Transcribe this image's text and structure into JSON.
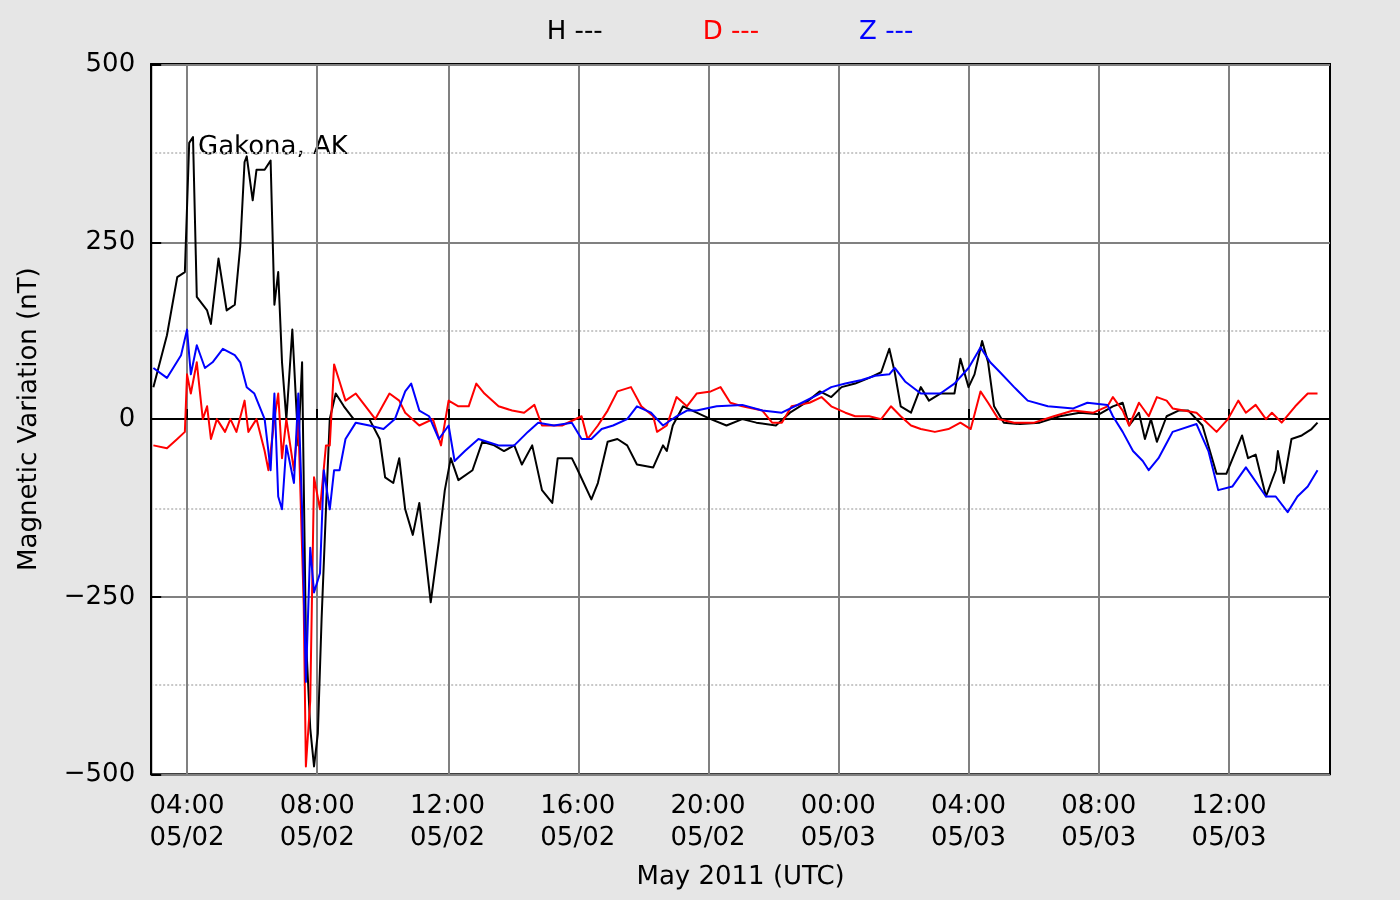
{
  "chart_data": {
    "type": "line",
    "xlabel": "May 2011 (UTC)",
    "ylabel": "Magnetic Variation (nT)",
    "annotations": [
      "Gakona, AK"
    ],
    "legend": "top",
    "grid": true,
    "xlim": [
      "2011-05-02T02:54",
      "2011-05-03T15:06"
    ],
    "xticks": [
      {
        "value": "2011-05-02T04:00",
        "label": "04:00\n05/02"
      },
      {
        "value": "2011-05-02T08:00",
        "label": "08:00\n05/02"
      },
      {
        "value": "2011-05-02T12:00",
        "label": "12:00\n05/02"
      },
      {
        "value": "2011-05-02T16:00",
        "label": "16:00\n05/02"
      },
      {
        "value": "2011-05-02T20:00",
        "label": "20:00\n05/02"
      },
      {
        "value": "2011-05-03T00:00",
        "label": "00:00\n05/03"
      },
      {
        "value": "2011-05-03T04:00",
        "label": "04:00\n05/03"
      },
      {
        "value": "2011-05-03T08:00",
        "label": "08:00\n05/03"
      },
      {
        "value": "2011-05-03T12:00",
        "label": "12:00\n05/03"
      }
    ],
    "ylim": [
      -500,
      500
    ],
    "yticks": [
      {
        "value": -500,
        "label": "−500"
      },
      {
        "value": -250,
        "label": "−250"
      },
      0,
      250,
      500
    ],
    "series": [
      {
        "name": "H ---",
        "color": "#000000",
        "x": [
          "2011-05-02T02:58",
          "2011-05-02T03:23",
          "2011-05-02T03:42",
          "2011-05-02T03:56",
          "2011-05-02T04:04",
          "2011-05-02T04:11",
          "2011-05-02T04:18",
          "2011-05-02T04:37",
          "2011-05-02T04:44",
          "2011-05-02T04:58",
          "2011-05-02T05:13",
          "2011-05-02T05:28",
          "2011-05-02T05:38",
          "2011-05-02T05:46",
          "2011-05-02T05:50",
          "2011-05-02T06:01",
          "2011-05-02T06:08",
          "2011-05-02T06:23",
          "2011-05-02T06:34",
          "2011-05-02T06:41",
          "2011-05-02T06:48",
          "2011-05-02T06:55",
          "2011-05-02T07:03",
          "2011-05-02T07:07",
          "2011-05-02T07:14",
          "2011-05-02T07:25",
          "2011-05-02T07:32",
          "2011-05-02T07:39",
          "2011-05-02T07:47",
          "2011-05-02T07:54",
          "2011-05-02T08:01",
          "2011-05-02T08:08",
          "2011-05-02T08:16",
          "2011-05-02T08:23",
          "2011-05-02T08:34",
          "2011-05-02T08:49",
          "2011-05-02T09:07",
          "2011-05-02T09:36",
          "2011-05-02T09:55",
          "2011-05-02T10:05",
          "2011-05-02T10:20",
          "2011-05-02T10:31",
          "2011-05-02T10:42",
          "2011-05-02T10:56",
          "2011-05-02T11:08",
          "2011-05-02T11:19",
          "2011-05-02T11:29",
          "2011-05-02T11:44",
          "2011-05-02T11:55",
          "2011-05-02T12:06",
          "2011-05-02T12:20",
          "2011-05-02T12:46",
          "2011-05-02T13:04",
          "2011-05-02T13:26",
          "2011-05-02T13:44",
          "2011-05-02T14:03",
          "2011-05-02T14:17",
          "2011-05-02T14:36",
          "2011-05-02T14:54",
          "2011-05-02T15:13",
          "2011-05-02T15:23",
          "2011-05-02T15:49",
          "2011-05-02T16:00",
          "2011-05-02T16:25",
          "2011-05-02T16:37",
          "2011-05-02T16:55",
          "2011-05-02T17:13",
          "2011-05-02T17:31",
          "2011-05-02T17:49",
          "2011-05-02T18:19",
          "2011-05-02T18:37",
          "2011-05-02T18:44",
          "2011-05-02T18:55",
          "2011-05-02T19:14",
          "2011-05-02T19:39",
          "2011-05-02T20:05",
          "2011-05-02T20:34",
          "2011-05-02T21:03",
          "2011-05-02T21:29",
          "2011-05-02T22:05",
          "2011-05-02T22:31",
          "2011-05-02T23:00",
          "2011-05-02T23:26",
          "2011-05-02T23:47",
          "2011-05-03T00:06",
          "2011-05-03T00:31",
          "2011-05-03T00:57",
          "2011-05-03T01:19",
          "2011-05-03T01:34",
          "2011-05-03T01:44",
          "2011-05-03T01:55",
          "2011-05-03T02:14",
          "2011-05-03T02:32",
          "2011-05-03T02:47",
          "2011-05-03T03:08",
          "2011-05-03T03:34",
          "2011-05-03T03:45",
          "2011-05-03T04:00",
          "2011-05-03T04:11",
          "2011-05-03T04:25",
          "2011-05-03T04:36",
          "2011-05-03T04:47",
          "2011-05-03T05:05",
          "2011-05-03T05:35",
          "2011-05-03T06:11",
          "2011-05-03T06:48",
          "2011-05-03T07:25",
          "2011-05-03T08:01",
          "2011-05-03T08:26",
          "2011-05-03T08:44",
          "2011-05-03T08:56",
          "2011-05-03T09:14",
          "2011-05-03T09:25",
          "2011-05-03T09:36",
          "2011-05-03T09:47",
          "2011-05-03T10:05",
          "2011-05-03T10:27",
          "2011-05-03T10:45",
          "2011-05-03T11:11",
          "2011-05-03T11:37",
          "2011-05-03T11:55",
          "2011-05-03T12:24",
          "2011-05-03T12:35",
          "2011-05-03T12:49",
          "2011-05-03T13:08",
          "2011-05-03T13:26",
          "2011-05-03T13:30",
          "2011-05-03T13:41",
          "2011-05-03T13:55",
          "2011-05-03T14:14",
          "2011-05-03T14:32",
          "2011-05-03T14:43"
        ],
        "values": [
          45,
          118,
          200,
          207,
          389,
          397,
          172,
          153,
          134,
          226,
          153,
          161,
          243,
          362,
          370,
          308,
          351,
          351,
          364,
          161,
          207,
          80,
          0,
          45,
          126,
          -37,
          80,
          -307,
          -435,
          -489,
          -443,
          -280,
          -127,
          0,
          36,
          18,
          0,
          0,
          -28,
          -82,
          -90,
          -55,
          -127,
          -163,
          -118,
          -190,
          -258,
          -172,
          -100,
          -55,
          -86,
          -72,
          -32,
          -37,
          -45,
          -37,
          -64,
          -37,
          -100,
          -118,
          -55,
          -55,
          -72,
          -113,
          -90,
          -32,
          -28,
          -37,
          -64,
          -68,
          -37,
          -45,
          -9,
          18,
          9,
          0,
          -9,
          0,
          -5,
          -9,
          9,
          23,
          39,
          31,
          45,
          50,
          58,
          66,
          99,
          66,
          18,
          9,
          45,
          26,
          36,
          36,
          85,
          45,
          63,
          110,
          80,
          18,
          -5,
          -7,
          -5,
          4,
          9,
          7,
          18,
          23,
          -9,
          9,
          -28,
          0,
          -32,
          4,
          12,
          12,
          -9,
          -77,
          -77,
          -23,
          -55,
          -50,
          -109,
          -72,
          -45,
          -90,
          -28,
          -23,
          -14,
          -5
        ]
      },
      {
        "name": "D ---",
        "color": "#ff0000",
        "x": [
          "2011-05-02T02:58",
          "2011-05-02T03:23",
          "2011-05-02T03:42",
          "2011-05-02T03:56",
          "2011-05-02T04:00",
          "2011-05-02T04:07",
          "2011-05-02T04:18",
          "2011-05-02T04:29",
          "2011-05-02T04:37",
          "2011-05-02T04:44",
          "2011-05-02T04:55",
          "2011-05-02T05:10",
          "2011-05-02T05:20",
          "2011-05-02T05:31",
          "2011-05-02T05:46",
          "2011-05-02T05:53",
          "2011-05-02T06:08",
          "2011-05-02T06:23",
          "2011-05-02T06:30",
          "2011-05-02T06:41",
          "2011-05-02T06:48",
          "2011-05-02T06:55",
          "2011-05-02T07:03",
          "2011-05-02T07:17",
          "2011-05-02T07:25",
          "2011-05-02T07:35",
          "2011-05-02T07:39",
          "2011-05-02T07:47",
          "2011-05-02T07:54",
          "2011-05-02T08:05",
          "2011-05-02T08:16",
          "2011-05-02T08:23",
          "2011-05-02T08:31",
          "2011-05-02T08:41",
          "2011-05-02T08:52",
          "2011-05-02T09:11",
          "2011-05-02T09:29",
          "2011-05-02T09:47",
          "2011-05-02T10:13",
          "2011-05-02T10:31",
          "2011-05-02T10:42",
          "2011-05-02T11:08",
          "2011-05-02T11:33",
          "2011-05-02T11:48",
          "2011-05-02T12:02",
          "2011-05-02T12:20",
          "2011-05-02T12:39",
          "2011-05-02T12:53",
          "2011-05-02T13:08",
          "2011-05-02T13:34",
          "2011-05-02T13:59",
          "2011-05-02T14:21",
          "2011-05-02T14:40",
          "2011-05-02T14:54",
          "2011-05-02T15:31",
          "2011-05-02T16:07",
          "2011-05-02T16:18",
          "2011-05-02T16:37",
          "2011-05-02T16:55",
          "2011-05-02T17:13",
          "2011-05-02T17:38",
          "2011-05-02T17:57",
          "2011-05-02T18:19",
          "2011-05-02T18:26",
          "2011-05-02T18:44",
          "2011-05-02T19:02",
          "2011-05-02T19:21",
          "2011-05-02T19:39",
          "2011-05-02T20:05",
          "2011-05-02T20:23",
          "2011-05-02T20:41",
          "2011-05-02T21:03",
          "2011-05-02T21:40",
          "2011-05-02T21:58",
          "2011-05-02T22:16",
          "2011-05-02T22:34",
          "2011-05-02T23:07",
          "2011-05-02T23:29",
          "2011-05-02T23:47",
          "2011-05-03T00:13",
          "2011-05-03T00:31",
          "2011-05-03T00:57",
          "2011-05-03T01:19",
          "2011-05-03T01:37",
          "2011-05-03T01:55",
          "2011-05-03T02:14",
          "2011-05-03T02:32",
          "2011-05-03T02:58",
          "2011-05-03T03:23",
          "2011-05-03T03:45",
          "2011-05-03T04:04",
          "2011-05-03T04:22",
          "2011-05-03T04:36",
          "2011-05-03T04:55",
          "2011-05-03T05:24",
          "2011-05-03T06:01",
          "2011-05-03T06:37",
          "2011-05-03T07:13",
          "2011-05-03T07:50",
          "2011-05-03T08:16",
          "2011-05-03T08:26",
          "2011-05-03T08:44",
          "2011-05-03T08:56",
          "2011-05-03T09:14",
          "2011-05-03T09:32",
          "2011-05-03T09:47",
          "2011-05-03T10:05",
          "2011-05-03T10:16",
          "2011-05-03T11:00",
          "2011-05-03T11:37",
          "2011-05-03T11:58",
          "2011-05-03T12:17",
          "2011-05-03T12:31",
          "2011-05-03T12:49",
          "2011-05-03T13:08",
          "2011-05-03T13:19",
          "2011-05-03T13:37",
          "2011-05-03T14:02",
          "2011-05-03T14:25",
          "2011-05-03T14:43"
        ],
        "values": [
          -37,
          -41,
          -28,
          -18,
          63,
          36,
          80,
          0,
          18,
          -28,
          0,
          -18,
          0,
          -18,
          26,
          -18,
          0,
          -45,
          -72,
          0,
          36,
          -55,
          0,
          -72,
          0,
          -262,
          -489,
          -397,
          -82,
          -127,
          -37,
          -37,
          77,
          53,
          26,
          36,
          18,
          0,
          36,
          26,
          9,
          -9,
          0,
          -37,
          26,
          18,
          18,
          50,
          36,
          18,
          12,
          9,
          20,
          -9,
          -9,
          4,
          -28,
          -9,
          12,
          39,
          45,
          18,
          4,
          -18,
          -9,
          31,
          18,
          36,
          39,
          45,
          23,
          18,
          12,
          -5,
          -5,
          18,
          23,
          31,
          18,
          9,
          4,
          4,
          0,
          18,
          4,
          -9,
          -14,
          -18,
          -14,
          -5,
          -14,
          39,
          23,
          0,
          -5,
          -5,
          4,
          12,
          9,
          18,
          31,
          12,
          -9,
          23,
          4,
          31,
          26,
          15,
          9,
          -18,
          0,
          26,
          9,
          20,
          0,
          9,
          -5,
          18,
          36,
          36
        ]
      },
      {
        "name": "Z ---",
        "color": "#0000ff",
        "x": [
          "2011-05-02T02:58",
          "2011-05-02T03:23",
          "2011-05-02T03:49",
          "2011-05-02T04:00",
          "2011-05-02T04:07",
          "2011-05-02T04:18",
          "2011-05-02T04:33",
          "2011-05-02T04:47",
          "2011-05-02T05:06",
          "2011-05-02T05:28",
          "2011-05-02T05:38",
          "2011-05-02T05:50",
          "2011-05-02T06:04",
          "2011-05-02T06:23",
          "2011-05-02T06:34",
          "2011-05-02T06:41",
          "2011-05-02T06:48",
          "2011-05-02T06:55",
          "2011-05-02T07:03",
          "2011-05-02T07:17",
          "2011-05-02T07:25",
          "2011-05-02T07:32",
          "2011-05-02T07:39",
          "2011-05-02T07:47",
          "2011-05-02T07:54",
          "2011-05-02T08:05",
          "2011-05-02T08:12",
          "2011-05-02T08:23",
          "2011-05-02T08:31",
          "2011-05-02T08:41",
          "2011-05-02T08:52",
          "2011-05-02T09:11",
          "2011-05-02T09:36",
          "2011-05-02T10:02",
          "2011-05-02T10:23",
          "2011-05-02T10:42",
          "2011-05-02T10:53",
          "2011-05-02T11:08",
          "2011-05-02T11:26",
          "2011-05-02T11:44",
          "2011-05-02T12:02",
          "2011-05-02T12:13",
          "2011-05-02T12:32",
          "2011-05-02T12:57",
          "2011-05-02T13:34",
          "2011-05-02T14:03",
          "2011-05-02T14:28",
          "2011-05-02T14:47",
          "2011-05-02T15:16",
          "2011-05-02T15:49",
          "2011-05-02T16:07",
          "2011-05-02T16:25",
          "2011-05-02T16:44",
          "2011-05-02T17:05",
          "2011-05-02T17:31",
          "2011-05-02T17:49",
          "2011-05-02T18:15",
          "2011-05-02T18:26",
          "2011-05-02T18:37",
          "2011-05-02T19:02",
          "2011-05-02T19:21",
          "2011-05-02T19:39",
          "2011-05-02T20:16",
          "2011-05-02T21:03",
          "2011-05-02T21:40",
          "2011-05-02T22:16",
          "2011-05-02T22:53",
          "2011-05-02T23:26",
          "2011-05-02T23:47",
          "2011-05-03T00:13",
          "2011-05-03T00:43",
          "2011-05-03T01:08",
          "2011-05-03T01:34",
          "2011-05-03T01:44",
          "2011-05-03T02:03",
          "2011-05-03T02:32",
          "2011-05-03T03:08",
          "2011-05-03T03:34",
          "2011-05-03T04:00",
          "2011-05-03T04:17",
          "2011-05-03T04:22",
          "2011-05-03T04:40",
          "2011-05-03T04:58",
          "2011-05-03T05:24",
          "2011-05-03T05:49",
          "2011-05-03T06:26",
          "2011-05-03T07:13",
          "2011-05-03T07:39",
          "2011-05-03T08:16",
          "2011-05-03T08:26",
          "2011-05-03T08:44",
          "2011-05-03T09:03",
          "2011-05-03T09:21",
          "2011-05-03T09:32",
          "2011-05-03T09:50",
          "2011-05-03T10:09",
          "2011-05-03T10:16",
          "2011-05-03T11:00",
          "2011-05-03T11:22",
          "2011-05-03T11:40",
          "2011-05-03T12:06",
          "2011-05-03T12:31",
          "2011-05-03T13:08",
          "2011-05-03T13:26",
          "2011-05-03T13:48",
          "2011-05-03T14:06",
          "2011-05-03T14:25",
          "2011-05-03T14:43"
        ],
        "values": [
          72,
          58,
          90,
          126,
          63,
          104,
          72,
          80,
          99,
          90,
          80,
          45,
          36,
          0,
          -72,
          36,
          -109,
          -127,
          -37,
          -90,
          36,
          -127,
          -370,
          -181,
          -244,
          -217,
          -72,
          -127,
          -72,
          -72,
          -28,
          -5,
          -9,
          -14,
          0,
          39,
          50,
          12,
          4,
          -28,
          -9,
          -59,
          -45,
          -28,
          -37,
          -37,
          -18,
          -5,
          -9,
          -5,
          -28,
          -28,
          -14,
          -9,
          0,
          18,
          9,
          0,
          -9,
          4,
          12,
          12,
          18,
          20,
          12,
          9,
          23,
          36,
          45,
          50,
          55,
          61,
          63,
          72,
          53,
          36,
          36,
          50,
          72,
          94,
          101,
          80,
          66,
          45,
          26,
          18,
          15,
          23,
          20,
          4,
          -18,
          -45,
          -59,
          -72,
          -55,
          -28,
          -18,
          -7,
          -45,
          -100,
          -95,
          -68,
          -109,
          -109,
          -131,
          -109,
          -95,
          -72
        ]
      }
    ]
  }
}
